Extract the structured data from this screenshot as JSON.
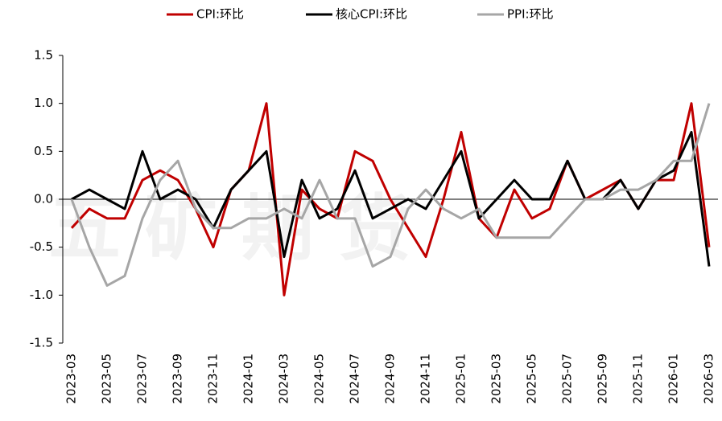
{
  "chart_data": {
    "type": "line",
    "watermark": "五矿期货",
    "categories": [
      "2023-03",
      null,
      "2023-05",
      null,
      "2023-07",
      null,
      "2023-09",
      null,
      "2023-11",
      null,
      "2024-01",
      null,
      "2024-03",
      null,
      "2024-05",
      null,
      "2024-07",
      null,
      "2024-09",
      null,
      "2024-11",
      null,
      "2025-01",
      null,
      "2025-03",
      null,
      "2025-05",
      null,
      "2025-07",
      null,
      "2025-09",
      null,
      "2025-11",
      null,
      "2026-01",
      null,
      "2026-03"
    ],
    "series": [
      {
        "name": "CPI:环比",
        "color": "#c00000",
        "values": [
          -0.3,
          -0.1,
          -0.2,
          -0.2,
          0.2,
          0.3,
          0.2,
          -0.1,
          -0.5,
          0.1,
          0.3,
          1.0,
          -1.0,
          0.1,
          -0.1,
          -0.2,
          0.5,
          0.4,
          0.0,
          -0.3,
          -0.6,
          0.0,
          0.7,
          -0.2,
          -0.4,
          0.1,
          -0.2,
          -0.1,
          0.4,
          0.0,
          0.1,
          0.2,
          -0.1,
          0.2,
          0.2,
          1.0,
          -0.5
        ]
      },
      {
        "name": "核心CPI:环比",
        "color": "#000000",
        "values": [
          0.0,
          0.1,
          0.0,
          -0.1,
          0.5,
          0.0,
          0.1,
          0.0,
          -0.3,
          0.1,
          0.3,
          0.5,
          -0.6,
          0.2,
          -0.2,
          -0.1,
          0.3,
          -0.2,
          -0.1,
          0.0,
          -0.1,
          0.2,
          0.5,
          -0.2,
          0.0,
          0.2,
          0.0,
          0.0,
          0.4,
          0.0,
          0.0,
          0.2,
          -0.1,
          0.2,
          0.3,
          0.7,
          -0.7
        ]
      },
      {
        "name": "PPI:环比",
        "color": "#a6a6a6",
        "values": [
          0.0,
          -0.5,
          -0.9,
          -0.8,
          -0.2,
          0.2,
          0.4,
          -0.1,
          -0.3,
          -0.3,
          -0.2,
          -0.2,
          -0.1,
          -0.2,
          0.2,
          -0.2,
          -0.2,
          -0.7,
          -0.6,
          -0.1,
          0.1,
          -0.1,
          -0.2,
          -0.1,
          -0.4,
          -0.4,
          -0.4,
          -0.4,
          -0.2,
          0.0,
          0.0,
          0.1,
          0.1,
          0.2,
          0.4,
          0.4,
          1.0
        ]
      }
    ],
    "ylim": [
      -1.5,
      1.5
    ],
    "yticks": [
      -1.5,
      {
        "value": -1.0,
        "label": "-1.0"
      },
      -0.5,
      {
        "value": 0.0,
        "label": "0.0"
      },
      0.5,
      {
        "value": 1.0,
        "label": "1.0"
      },
      1.5
    ],
    "legend": "top"
  }
}
